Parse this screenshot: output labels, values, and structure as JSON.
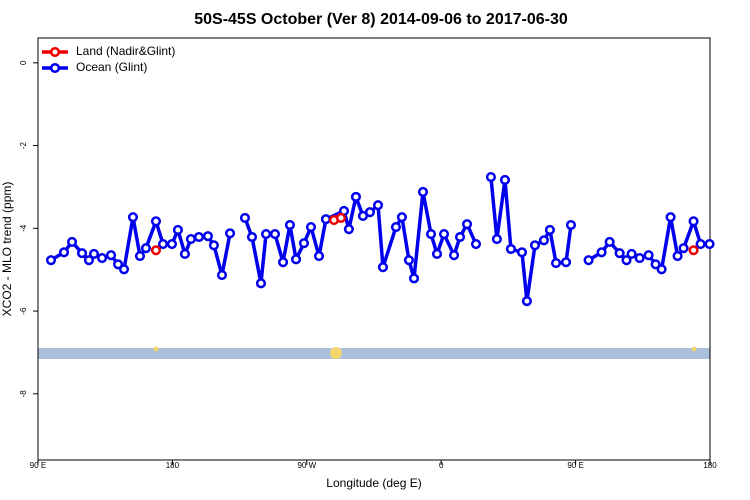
{
  "chart_data": {
    "type": "line",
    "title": "50S-45S October (Ver 8)   2014-09-06 to 2017-06-30",
    "x_label": "Longitude (deg E)",
    "y_label": "XCO2 - MLO trend (ppm)",
    "xlim": [
      90,
      540
    ],
    "xticks": [
      {
        "value": 90,
        "label": "90 E"
      },
      {
        "value": 180,
        "label": "180"
      },
      {
        "value": 270,
        "label": "90 W"
      },
      {
        "value": 360,
        "label": "0"
      },
      {
        "value": 450,
        "label": "90 E"
      },
      {
        "value": 540,
        "label": "180"
      }
    ],
    "ylim": [
      -9.6,
      0.6
    ],
    "yticks": [
      0,
      -2,
      -4,
      -6,
      -8
    ],
    "legend": "top-left",
    "series": [
      {
        "name": "Land (Nadir&Glint)",
        "color": "#ee0000",
        "x": [
          169.0,
          null,
          288.2,
          292.9,
          null,
          529.0
        ],
        "values": [
          -4.53,
          null,
          -3.8,
          -3.75,
          null,
          -4.53
        ]
      },
      {
        "name": "Ocean (Glint)",
        "color": "#0000ee",
        "x": [
          98.7,
          107.4,
          112.8,
          119.5,
          124.1,
          127.5,
          132.9,
          138.9,
          143.6,
          147.6,
          153.6,
          158.3,
          162.3,
          169.0,
          173.7,
          179.7,
          183.7,
          188.4,
          192.4,
          197.8,
          203.8,
          207.8,
          213.2,
          218.6,
          null,
          228.6,
          233.3,
          239.3,
          242.7,
          248.7,
          254.1,
          258.7,
          262.8,
          268.1,
          272.8,
          278.2,
          282.8,
          294.9,
          298.2,
          302.9,
          307.6,
          312.3,
          317.7,
          321.0,
          329.7,
          333.7,
          338.4,
          341.8,
          347.8,
          353.2,
          357.2,
          361.9,
          368.6,
          372.6,
          377.3,
          383.3,
          null,
          393.3,
          397.3,
          402.7,
          406.7,
          414.1,
          417.4,
          422.8,
          428.8,
          432.8,
          436.9,
          443.6,
          446.9,
          null,
          458.7,
          467.4,
          472.8,
          479.5,
          484.1,
          487.5,
          492.9,
          498.9,
          503.6,
          507.6,
          513.6,
          518.3,
          522.3,
          529.0,
          533.7,
          539.7
        ],
        "values": [
          -4.77,
          -4.58,
          -4.33,
          -4.6,
          -4.77,
          -4.62,
          -4.72,
          -4.65,
          -4.87,
          -4.99,
          -3.73,
          -4.67,
          -4.48,
          -3.83,
          -4.38,
          -4.38,
          -4.04,
          -4.62,
          -4.26,
          -4.21,
          -4.19,
          -4.41,
          -5.13,
          -4.12,
          null,
          -3.75,
          -4.21,
          -5.33,
          -4.14,
          -4.14,
          -4.82,
          -3.92,
          -4.75,
          -4.36,
          -3.97,
          -4.67,
          -3.78,
          -3.58,
          -4.02,
          -3.24,
          -3.7,
          -3.61,
          -3.44,
          -4.94,
          -3.97,
          -3.73,
          -4.77,
          -5.21,
          -3.12,
          -4.14,
          -4.62,
          -4.14,
          -4.65,
          -4.21,
          -3.9,
          -4.38,
          null,
          -2.76,
          -4.26,
          -2.83,
          -4.5,
          -4.58,
          -5.76,
          -4.41,
          -4.29,
          -4.04,
          -4.84,
          -4.82,
          -3.92,
          null,
          -4.77,
          -4.58,
          -4.33,
          -4.6,
          -4.77,
          -4.62,
          -4.72,
          -4.65,
          -4.87,
          -4.99,
          -3.73,
          -4.67,
          -4.48,
          -3.83,
          -4.38,
          -4.38
        ]
      }
    ]
  }
}
